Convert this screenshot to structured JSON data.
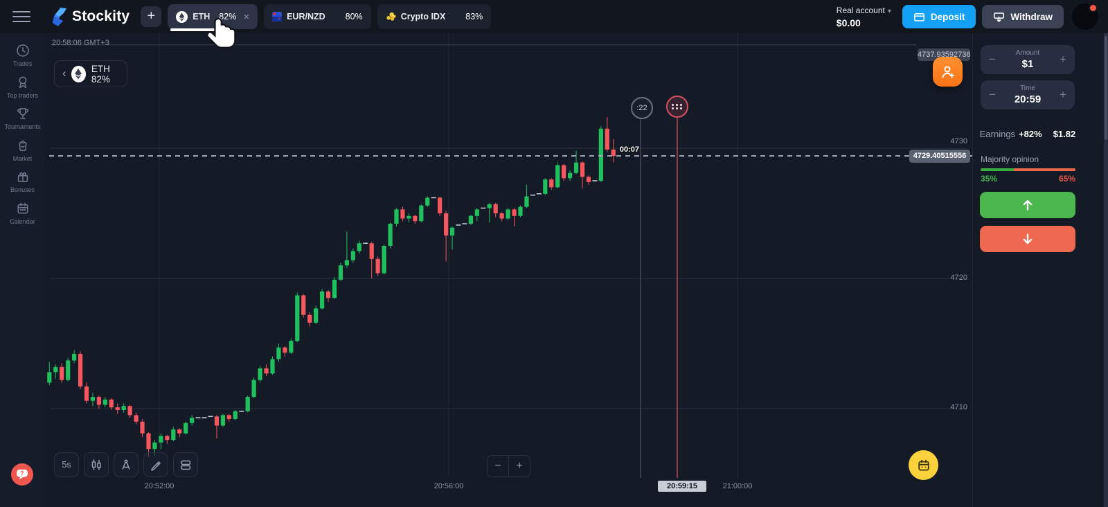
{
  "glyphs": {
    "minus": "−",
    "plus": "+",
    "caret": "▾",
    "close": "×",
    "chevron_left": "‹"
  },
  "topbar": {
    "logo_text": "Stockity",
    "new_tab_label": "+",
    "tabs": [
      {
        "name": "ETH",
        "payout": "82%",
        "active": true
      },
      {
        "name": "EUR/NZD",
        "payout": "80%",
        "active": false
      },
      {
        "name": "Crypto IDX",
        "payout": "83%",
        "active": false
      }
    ],
    "account": {
      "type_label": "Real account",
      "balance": "$0.00"
    },
    "deposit_label": "Deposit",
    "withdraw_label": "Withdraw"
  },
  "sidebar": {
    "items": [
      {
        "label": "Trades",
        "icon": "clock-icon"
      },
      {
        "label": "Top traders",
        "icon": "medal-icon"
      },
      {
        "label": "Tournaments",
        "icon": "trophy-icon"
      },
      {
        "label": "Market",
        "icon": "bag-icon"
      },
      {
        "label": "Bonuses",
        "icon": "gift-icon"
      },
      {
        "label": "Calendar",
        "icon": "calendar-icon"
      }
    ]
  },
  "chart": {
    "clock": "20:58:06 GMT+3",
    "asset": {
      "name_payout": "ETH 82%"
    },
    "countdown": ":22",
    "purchase_time_left": "00:07",
    "current_price_label": "4729.40515556",
    "high_price_label": "4737.93592736",
    "price_axis_labels": [
      "4730",
      "4720",
      "4710"
    ],
    "time_axis": [
      {
        "label": "20:52:00",
        "highlighted": false
      },
      {
        "label": "20:56:00",
        "highlighted": false
      },
      {
        "label": "20:59:15",
        "highlighted": true
      },
      {
        "label": "21:00:00",
        "highlighted": false
      }
    ],
    "toolbar": {
      "timeframe": "5s"
    },
    "zoom_out": "−",
    "zoom_in": "+"
  },
  "trade_panel": {
    "amount": {
      "label": "Amount",
      "value": "$1"
    },
    "time": {
      "label": "Time",
      "value": "20:59"
    },
    "earnings": {
      "label": "Earnings",
      "percent": "+82%",
      "value": "$1.82"
    },
    "majority": {
      "label": "Majority opinion",
      "up_percent": "35%",
      "down_percent": "65%"
    }
  },
  "colors": {
    "candle_green": "#21c05f",
    "candle_red": "#f5575f",
    "doji_gray": "#c3c9d5",
    "accent_blue": "#14a0f4",
    "up_green": "#4cb64f",
    "down_red": "#ee6950",
    "yellow": "#fbd23c",
    "orange": "#f97316"
  },
  "chart_data": {
    "type": "candlestick",
    "symbol": "ETH",
    "interval": "5s",
    "start_time": "20:50:25",
    "step_seconds": 5,
    "ylim": [
      4704,
      4738.5
    ],
    "y_gridlines": [
      4730,
      4720,
      4710
    ],
    "x_gridline_times": [
      "20:52:00",
      "20:56:00",
      "21:00:00"
    ],
    "current_price": 4729.40515556,
    "high_line_price": 4737.93592736,
    "expiry_time": "20:59:15",
    "candles": [
      [
        4712.0,
        4713.6,
        4711.8,
        4712.8
      ],
      [
        4712.8,
        4713.4,
        4712.3,
        4713.2
      ],
      [
        4713.2,
        4713.5,
        4712.0,
        4712.2
      ],
      [
        4712.2,
        4713.9,
        4712.1,
        4713.7
      ],
      [
        4713.7,
        4714.5,
        4713.5,
        4714.2
      ],
      [
        4714.2,
        4714.4,
        4711.5,
        4711.7
      ],
      [
        4711.7,
        4712.0,
        4710.4,
        4710.6
      ],
      [
        4710.6,
        4711.2,
        4710.2,
        4710.9
      ],
      [
        4710.9,
        4711.0,
        4710.0,
        4710.3
      ],
      [
        4710.3,
        4710.9,
        4710.1,
        4710.7
      ],
      [
        4710.7,
        4710.8,
        4709.9,
        4710.1
      ],
      [
        4710.1,
        4710.4,
        4709.6,
        4709.9
      ],
      [
        4709.9,
        4710.4,
        4709.7,
        4710.2
      ],
      [
        4710.2,
        4710.3,
        4709.3,
        4709.5
      ],
      [
        4709.5,
        4709.7,
        4708.8,
        4709.0
      ],
      [
        4709.0,
        4709.2,
        4707.8,
        4708.1
      ],
      [
        4708.1,
        4708.2,
        4706.3,
        4706.9
      ],
      [
        4706.9,
        4707.6,
        4706.4,
        4707.4
      ],
      [
        4707.4,
        4708.1,
        4706.9,
        4707.9
      ],
      [
        4707.9,
        4708.0,
        4707.3,
        4707.6
      ],
      [
        4707.6,
        4708.6,
        4707.5,
        4708.4
      ],
      [
        4708.4,
        4708.5,
        4707.8,
        4708.1
      ],
      [
        4708.1,
        4709.0,
        4708.0,
        4708.9
      ],
      [
        4708.9,
        4709.5,
        4708.7,
        4709.3
      ],
      [
        4709.3,
        4709.4,
        4709.2,
        4709.3
      ],
      [
        4709.3,
        4709.4,
        4709.2,
        4709.3
      ],
      [
        4709.3,
        4709.6,
        4709.1,
        4709.4
      ],
      [
        4709.4,
        4709.5,
        4707.7,
        4708.7
      ],
      [
        4708.7,
        4709.6,
        4708.6,
        4709.5
      ],
      [
        4709.5,
        4709.6,
        4709.0,
        4709.2
      ],
      [
        4709.2,
        4709.9,
        4709.1,
        4709.8
      ],
      [
        4709.8,
        4710.0,
        4709.7,
        4709.8
      ],
      [
        4709.8,
        4711.0,
        4709.7,
        4710.9
      ],
      [
        4710.9,
        4712.4,
        4710.8,
        4712.2
      ],
      [
        4712.2,
        4713.3,
        4712.0,
        4713.1
      ],
      [
        4713.1,
        4713.4,
        4712.5,
        4712.7
      ],
      [
        4712.7,
        4714.0,
        4712.6,
        4713.8
      ],
      [
        4713.8,
        4715.0,
        4713.6,
        4714.7
      ],
      [
        4714.7,
        4714.8,
        4714.0,
        4714.3
      ],
      [
        4714.3,
        4715.4,
        4714.2,
        4715.2
      ],
      [
        4715.2,
        4718.9,
        4715.1,
        4718.7
      ],
      [
        4718.7,
        4718.8,
        4717.0,
        4717.2
      ],
      [
        4717.2,
        4717.4,
        4716.3,
        4716.6
      ],
      [
        4716.6,
        4717.9,
        4716.5,
        4717.7
      ],
      [
        4717.7,
        4719.2,
        4717.6,
        4719.0
      ],
      [
        4719.0,
        4719.1,
        4718.2,
        4718.5
      ],
      [
        4718.5,
        4720.1,
        4718.4,
        4719.9
      ],
      [
        4719.9,
        4721.2,
        4719.8,
        4721.0
      ],
      [
        4721.0,
        4723.6,
        4720.8,
        4721.4
      ],
      [
        4721.4,
        4722.3,
        4721.2,
        4722.1
      ],
      [
        4722.1,
        4722.9,
        4721.9,
        4722.7
      ],
      [
        4722.7,
        4722.9,
        4722.5,
        4722.7
      ],
      [
        4722.7,
        4722.8,
        4720.0,
        4721.5
      ],
      [
        4721.5,
        4721.7,
        4720.2,
        4720.4
      ],
      [
        4720.4,
        4722.6,
        4720.3,
        4722.5
      ],
      [
        4722.5,
        4724.3,
        4722.3,
        4724.2
      ],
      [
        4724.2,
        4725.4,
        4724.0,
        4725.3
      ],
      [
        4725.3,
        4725.5,
        4724.4,
        4724.6
      ],
      [
        4724.6,
        4725.0,
        4724.3,
        4724.8
      ],
      [
        4724.8,
        4724.9,
        4724.2,
        4724.4
      ],
      [
        4724.4,
        4725.7,
        4724.3,
        4725.6
      ],
      [
        4725.6,
        4726.3,
        4725.5,
        4726.2
      ],
      [
        4726.2,
        4726.3,
        4726.1,
        4726.2
      ],
      [
        4726.2,
        4726.3,
        4724.8,
        4725.0
      ],
      [
        4725.0,
        4725.2,
        4721.3,
        4723.3
      ],
      [
        4723.3,
        4724.0,
        4722.2,
        4723.9
      ],
      [
        4724.0,
        4724.2,
        4723.9,
        4724.1
      ],
      [
        4724.1,
        4724.3,
        4724.0,
        4724.2
      ],
      [
        4724.2,
        4724.9,
        4724.1,
        4724.8
      ],
      [
        4724.8,
        4725.4,
        4724.4,
        4725.3
      ],
      [
        4725.3,
        4725.5,
        4725.2,
        4725.4
      ],
      [
        4725.4,
        4725.8,
        4724.3,
        4725.7
      ],
      [
        4725.7,
        4725.8,
        4724.7,
        4725.0
      ],
      [
        4725.0,
        4725.1,
        4724.4,
        4724.6
      ],
      [
        4724.6,
        4725.4,
        4724.5,
        4725.3
      ],
      [
        4725.3,
        4725.4,
        4724.0,
        4724.8
      ],
      [
        4724.8,
        4725.6,
        4724.7,
        4725.5
      ],
      [
        4725.5,
        4727.2,
        4725.4,
        4726.3
      ],
      [
        4726.3,
        4726.5,
        4726.2,
        4726.4
      ],
      [
        4726.4,
        4726.6,
        4726.3,
        4726.5
      ],
      [
        4726.5,
        4727.7,
        4726.4,
        4727.6
      ],
      [
        4727.6,
        4727.7,
        4726.8,
        4727.0
      ],
      [
        4727.0,
        4728.9,
        4726.9,
        4728.7
      ],
      [
        4728.7,
        4728.8,
        4727.5,
        4727.7
      ],
      [
        4727.7,
        4728.3,
        4727.5,
        4728.1
      ],
      [
        4728.1,
        4729.8,
        4728.0,
        4728.9
      ],
      [
        4728.9,
        4729.0,
        4726.9,
        4727.8
      ],
      [
        4727.8,
        4727.9,
        4727.2,
        4727.4
      ],
      [
        4727.4,
        4727.6,
        4727.1,
        4727.5
      ],
      [
        4727.5,
        4731.7,
        4727.4,
        4731.5
      ],
      [
        4731.5,
        4732.4,
        4729.7,
        4729.9
      ],
      [
        4729.9,
        4730.7,
        4728.9,
        4729.41
      ]
    ]
  }
}
